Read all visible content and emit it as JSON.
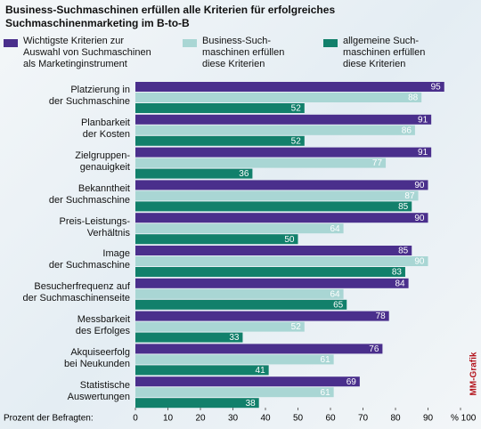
{
  "chart_data": {
    "type": "hbar",
    "title": "Business-Suchmaschinen erfüllen alle Kriterien für erfolgreiches\nSuchmaschinenmarketing im B-to-B",
    "categories": [
      "Platzierung in\nder Suchmaschine",
      "Planbarkeit\nder Kosten",
      "Zielgruppen-\ngenauigkeit",
      "Bekanntheit\nder Suchmaschine",
      "Preis-Leistungs-\nVerhältnis",
      "Image\nder Suchmaschine",
      "Besucherfrequenz auf\nder Suchmaschinenseite",
      "Messbarkeit\ndes Erfolges",
      "Akquiseerfolg\nbei Neukunden",
      "Statistische\nAuswertungen"
    ],
    "series": [
      {
        "name": "Wichtigste Kriterien zur\nAuswahl von Suchmaschinen\nals Marketinginstrument",
        "color": "#4a2f8c",
        "values": [
          95,
          91,
          91,
          90,
          90,
          85,
          84,
          78,
          76,
          69
        ]
      },
      {
        "name": "Business-Such-\nmaschinen erfüllen\ndiese Kriterien",
        "color": "#a9d6d4",
        "values": [
          88,
          86,
          77,
          87,
          64,
          90,
          64,
          52,
          61,
          61
        ]
      },
      {
        "name": "allgemeine Such-\nmaschinen erfüllen\ndiese Kriterien",
        "color": "#12806b",
        "values": [
          52,
          52,
          36,
          85,
          50,
          83,
          65,
          33,
          41,
          38
        ]
      }
    ],
    "xlabel": "Prozent der Befragten:",
    "xlim": [
      0,
      100
    ],
    "xticks": [
      0,
      10,
      20,
      30,
      40,
      50,
      60,
      70,
      80,
      90,
      {
        "value": 100,
        "label": "% 100"
      }
    ],
    "credit": "MM-Grafik"
  }
}
